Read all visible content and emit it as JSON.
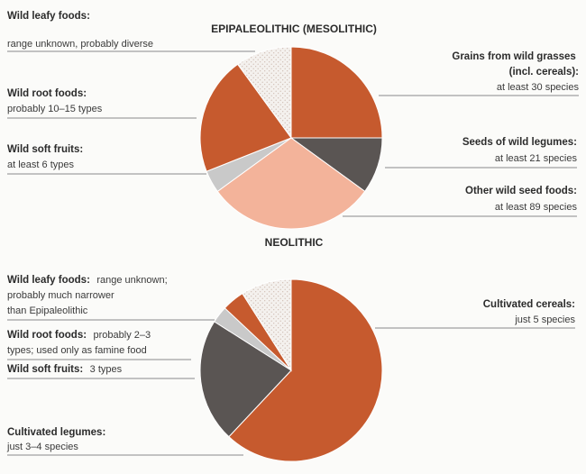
{
  "chart_data": [
    {
      "type": "pie",
      "title": "EPIPALEOLITHIC (MESOLITHIC)",
      "slices": [
        {
          "bold": "Grains from wild grasses (incl. cereals):",
          "text": "at least 30 species",
          "value": 25,
          "color": "#c65a2e",
          "pattern": false
        },
        {
          "bold": "Seeds of wild legumes:",
          "text": "at least 21 species",
          "value": 10,
          "color": "#5a5553",
          "pattern": false
        },
        {
          "bold": "Other wild seed foods:",
          "text": "at least 89 species",
          "value": 30,
          "color": "#f3b39a",
          "pattern": false
        },
        {
          "bold": "Wild soft fruits:",
          "text": "at least 6 types",
          "value": 4,
          "color": "#c9c9c9",
          "pattern": false
        },
        {
          "bold": "Wild root foods:",
          "text": "probably 10–15 types",
          "value": 21,
          "color": "#c65a2e",
          "pattern": false
        },
        {
          "bold": "Wild leafy foods:",
          "text": "range unknown, probably diverse",
          "value": 10,
          "color": "#f2efec",
          "pattern": true
        }
      ]
    },
    {
      "type": "pie",
      "title": "NEOLITHIC",
      "slices": [
        {
          "bold": "Cultivated cereals:",
          "text": "just 5 species",
          "value": 62,
          "color": "#c65a2e",
          "pattern": false
        },
        {
          "bold": "Cultivated legumes:",
          "text": "just 3–4 species",
          "value": 22,
          "color": "#5a5553",
          "pattern": false
        },
        {
          "bold": "Wild soft fruits:",
          "text": "3 types",
          "value": 3,
          "color": "#c9c9c9",
          "pattern": false
        },
        {
          "bold": "Wild root foods:",
          "text": "probably 2–3 types; used only as famine food",
          "value": 4,
          "color": "#c65a2e",
          "pattern": false
        },
        {
          "bold": "Wild leafy foods:",
          "text": "range unknown; probably much narrower than Epipaleolithic",
          "value": 9,
          "color": "#f2efec",
          "pattern": true
        }
      ]
    }
  ]
}
